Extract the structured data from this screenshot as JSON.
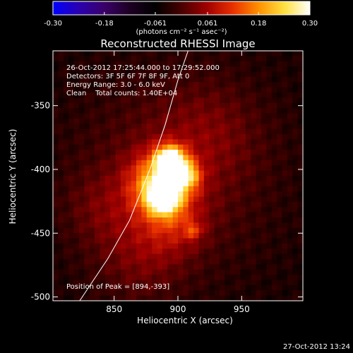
{
  "chart_data": {
    "type": "heatmap",
    "title": "Reconstructed RHESSI Image",
    "xlabel": "Heliocentric X (arcsec)",
    "ylabel": "Heliocentric Y (arcsec)",
    "xlim": [
      802,
      998
    ],
    "ylim": [
      -503,
      -307
    ],
    "x_ticks": [
      850,
      900,
      950
    ],
    "y_ticks": [
      -350,
      -400,
      -450,
      -500
    ],
    "colorbar": {
      "ticks": [
        "-0.30",
        "-0.18",
        "-0.061",
        "0.061",
        "0.18",
        "0.30"
      ],
      "range": [
        -0.3,
        0.3
      ],
      "units": "(photons cm⁻² s⁻¹ asec⁻²)",
      "colormap": [
        "#0000ff",
        "#2a00b0",
        "#3a0068",
        "#1c0022",
        "#000000",
        "#480000",
        "#a00000",
        "#e83000",
        "#ff9000",
        "#ffe040",
        "#ffffff"
      ]
    },
    "info_lines": [
      "26-Oct-2012 17:25:44.000 to 17:29:52.000",
      "Detectors: 3F 5F 6F 7F 8F 9F, Att 0",
      "Energy Range: 3.0 - 6.0 keV",
      "Clean    Total counts: 1.40E+04"
    ],
    "peak_label": "Position of Peak = [894,-393]",
    "peak": [
      894,
      -393
    ],
    "footer_date": "27-Oct-2012 13:24",
    "limb": [
      [
        823,
        -503
      ],
      [
        845,
        -470
      ],
      [
        862,
        -440
      ],
      [
        878,
        -400
      ],
      [
        890,
        -365
      ],
      [
        900,
        -330
      ],
      [
        908,
        -307
      ]
    ],
    "sources": [
      {
        "x": 894,
        "y": -393,
        "amp": 0.3,
        "sigma": 8
      },
      {
        "x": 889,
        "y": -422,
        "amp": 0.24,
        "sigma": 9
      },
      {
        "x": 906,
        "y": -405,
        "amp": 0.18,
        "sigma": 8
      },
      {
        "x": 885,
        "y": -410,
        "amp": 0.2,
        "sigma": 16
      },
      {
        "x": 895,
        "y": -440,
        "amp": 0.08,
        "sigma": 18
      },
      {
        "x": 912,
        "y": -448,
        "amp": 0.08,
        "sigma": 5
      },
      {
        "x": 895,
        "y": -404,
        "amp": 0.06,
        "sigma": 52
      },
      {
        "x": 870,
        "y": -470,
        "amp": 0.05,
        "sigma": 25
      },
      {
        "x": 925,
        "y": -370,
        "amp": 0.04,
        "sigma": 28
      },
      {
        "x": 840,
        "y": -430,
        "amp": 0.04,
        "sigma": 20
      }
    ]
  }
}
